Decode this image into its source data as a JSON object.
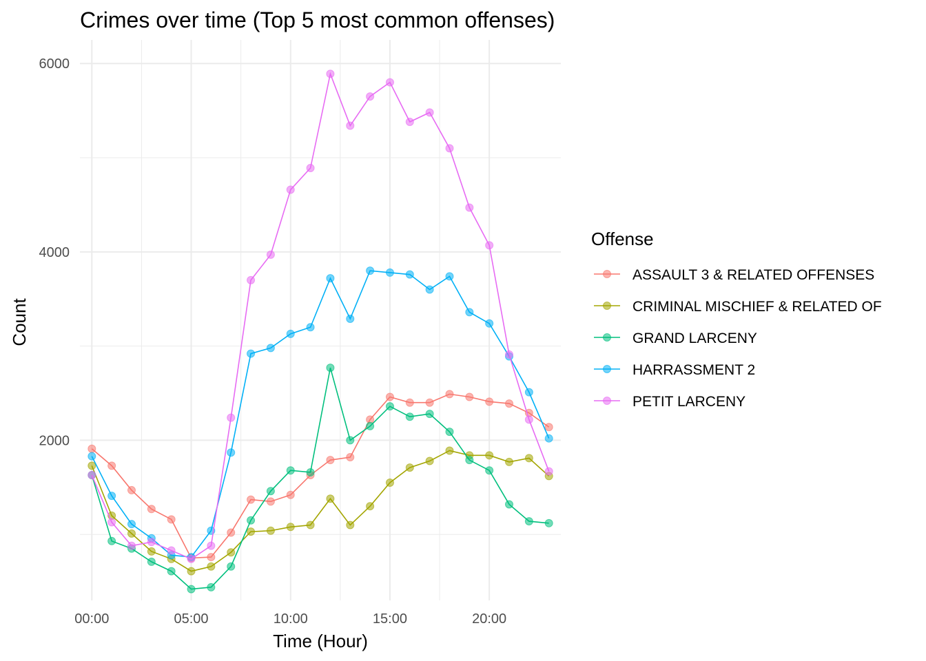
{
  "chart_data": {
    "type": "line",
    "title": "Crimes over time (Top 5 most common offenses)",
    "xlabel": "Time (Hour)",
    "ylabel": "Count",
    "x": [
      0,
      1,
      2,
      3,
      4,
      5,
      6,
      7,
      8,
      9,
      10,
      11,
      12,
      13,
      14,
      15,
      16,
      17,
      18,
      19,
      20,
      21,
      22,
      23
    ],
    "xlim": [
      -0.6,
      23.6
    ],
    "ylim": [
      300,
      6250
    ],
    "x_ticks": [
      0,
      5,
      10,
      15,
      20
    ],
    "x_tick_labels": [
      "00:00",
      "05:00",
      "10:00",
      "15:00",
      "20:00"
    ],
    "y_ticks": [
      2000,
      4000,
      6000
    ],
    "y_tick_labels": [
      "2000",
      "4000",
      "6000"
    ],
    "y_minor_ticks": [
      1000,
      3000,
      5000
    ],
    "grid": true,
    "legend": {
      "title": "Offense",
      "placement": "right"
    },
    "series": [
      {
        "name": "ASSAULT 3 & RELATED OFFENSES",
        "color": "#F8766D",
        "values": [
          1910,
          1730,
          1470,
          1270,
          1160,
          750,
          760,
          1020,
          1370,
          1350,
          1420,
          1630,
          1790,
          1820,
          2220,
          2460,
          2400,
          2400,
          2490,
          2460,
          2410,
          2390,
          2290,
          2140
        ]
      },
      {
        "name": "CRIMINAL MISCHIEF & RELATED OF",
        "color": "#A3A500",
        "values": [
          1730,
          1200,
          1010,
          820,
          740,
          610,
          660,
          810,
          1030,
          1040,
          1080,
          1100,
          1380,
          1100,
          1300,
          1550,
          1710,
          1780,
          1890,
          1840,
          1840,
          1770,
          1810,
          1620
        ]
      },
      {
        "name": "GRAND LARCENY",
        "color": "#00BF7D",
        "values": [
          1630,
          930,
          850,
          710,
          610,
          420,
          440,
          660,
          1150,
          1460,
          1680,
          1660,
          2770,
          2000,
          2150,
          2360,
          2250,
          2280,
          2090,
          1790,
          1680,
          1320,
          1140,
          1120
        ]
      },
      {
        "name": "HARRASSMENT 2",
        "color": "#00B0F6",
        "values": [
          1830,
          1410,
          1110,
          960,
          780,
          760,
          1040,
          1870,
          2920,
          2980,
          3130,
          3200,
          3720,
          3290,
          3800,
          3780,
          3760,
          3600,
          3740,
          3360,
          3240,
          2890,
          2510,
          2020
        ]
      },
      {
        "name": "PETIT LARCENY",
        "color": "#E76BF3",
        "values": [
          1630,
          1130,
          880,
          920,
          830,
          740,
          880,
          2240,
          3700,
          3970,
          4660,
          4890,
          5890,
          5340,
          5650,
          5800,
          5380,
          5480,
          5100,
          4470,
          4070,
          2910,
          2220,
          1670
        ]
      }
    ]
  }
}
